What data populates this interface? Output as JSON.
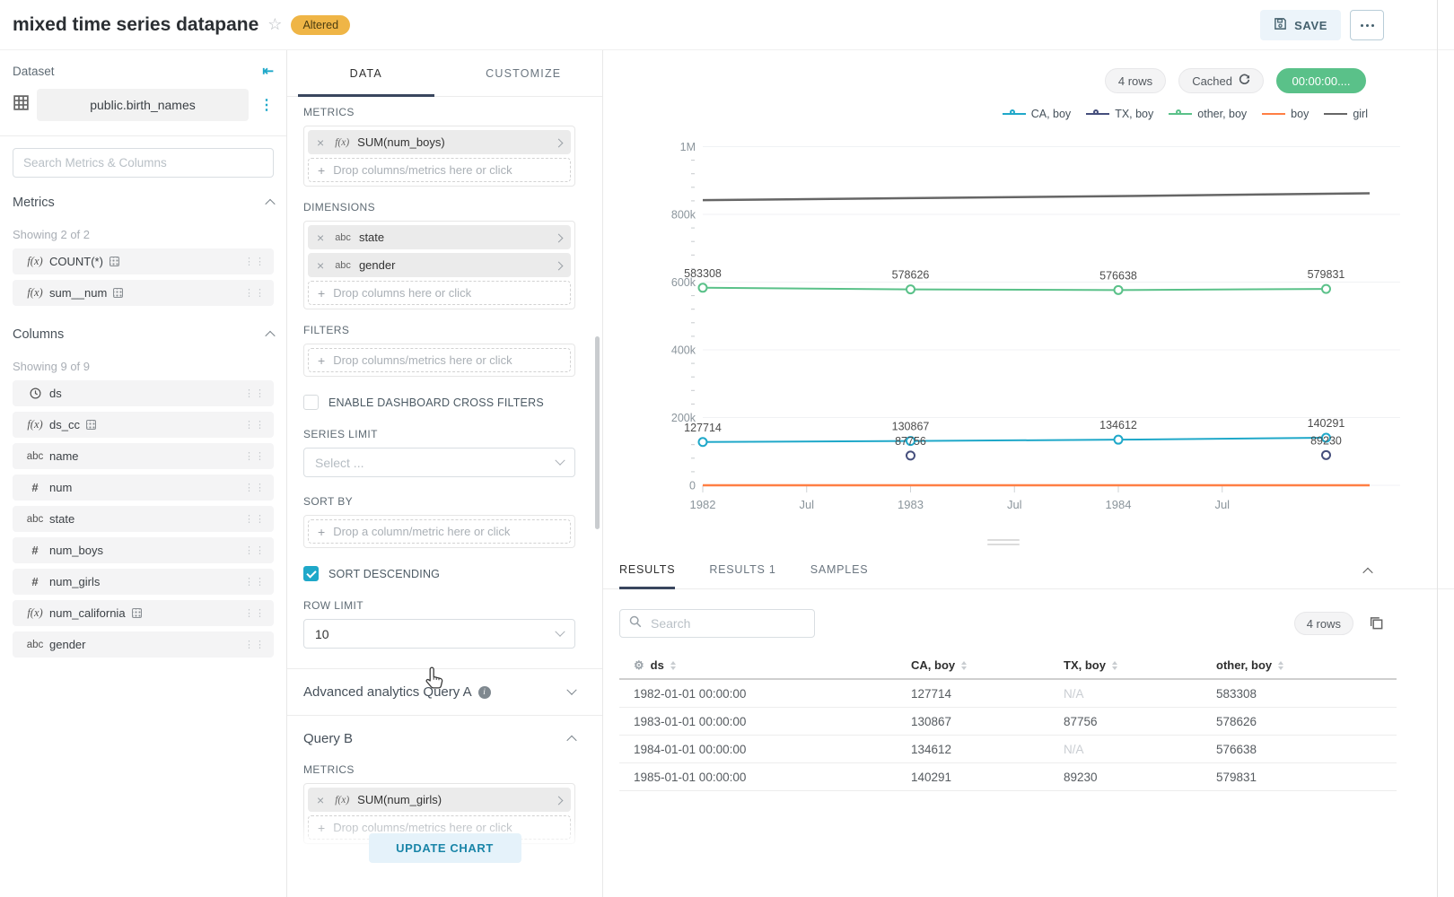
{
  "header": {
    "title": "mixed time series datapane",
    "altered_badge": "Altered",
    "save_label": "SAVE"
  },
  "dataset_panel": {
    "section_label": "Dataset",
    "dataset_name": "public.birth_names",
    "search_placeholder": "Search Metrics & Columns",
    "metrics_header": "Metrics",
    "metrics_showing": "Showing 2 of 2",
    "metrics": [
      {
        "name": "COUNT(*)",
        "icon": "fx",
        "certified": true
      },
      {
        "name": "sum__num",
        "icon": "fx",
        "certified": true
      }
    ],
    "columns_header": "Columns",
    "columns_showing": "Showing 9 of 9",
    "columns": [
      {
        "name": "ds",
        "icon": "clock"
      },
      {
        "name": "ds_cc",
        "icon": "fx",
        "certified": true
      },
      {
        "name": "name",
        "icon": "abc"
      },
      {
        "name": "num",
        "icon": "num"
      },
      {
        "name": "state",
        "icon": "abc"
      },
      {
        "name": "num_boys",
        "icon": "num"
      },
      {
        "name": "num_girls",
        "icon": "num"
      },
      {
        "name": "num_california",
        "icon": "fx",
        "certified": true
      },
      {
        "name": "gender",
        "icon": "abc"
      }
    ]
  },
  "control_panel": {
    "tabs": [
      "DATA",
      "CUSTOMIZE"
    ],
    "active_tab": "DATA",
    "query_a": {
      "metrics_label": "METRICS",
      "metric_pill": "SUM(num_boys)",
      "drop_metrics_placeholder": "Drop columns/metrics here or click",
      "dimensions_label": "DIMENSIONS",
      "dimension_pills": [
        "state",
        "gender"
      ],
      "drop_columns_placeholder": "Drop columns here or click",
      "filters_label": "FILTERS",
      "cross_filters_label": "ENABLE DASHBOARD CROSS FILTERS",
      "cross_filters_checked": false,
      "series_limit_label": "SERIES LIMIT",
      "series_limit_placeholder": "Select ...",
      "sort_by_label": "SORT BY",
      "drop_sort_placeholder": "Drop a column/metric here or click",
      "sort_descending_label": "SORT DESCENDING",
      "sort_descending_checked": true,
      "row_limit_label": "ROW LIMIT",
      "row_limit_value": "10"
    },
    "advanced_analytics_label": "Advanced analytics Query A",
    "query_b_label": "Query B",
    "query_b": {
      "metrics_label": "METRICS",
      "metric_pill": "SUM(num_girls)",
      "drop_metrics_placeholder": "Drop columns/metrics here or click"
    },
    "update_chart_label": "UPDATE CHART"
  },
  "chart": {
    "badges": {
      "rows": "4 rows",
      "cached": "Cached",
      "timer": "00:00:00...."
    },
    "chart_data": {
      "type": "line",
      "x": [
        "1982-01-01",
        "1983-01-01",
        "1984-01-01",
        "1985-01-01"
      ],
      "x_tick_labels": [
        "1982",
        "Jul",
        "1983",
        "Jul",
        "1984",
        "Jul"
      ],
      "y_tick_labels": [
        "1M",
        "800k",
        "600k",
        "400k",
        "200k",
        "0"
      ],
      "ylim": [
        0,
        1000000
      ],
      "grid": true,
      "legend_position": "top-right",
      "series": [
        {
          "name": "CA, boy",
          "color": "#1FA8C9",
          "marker": true,
          "values": [
            127714,
            130867,
            134612,
            140291
          ]
        },
        {
          "name": "TX, boy",
          "color": "#454E7C",
          "marker": true,
          "line": false,
          "values": [
            null,
            87756,
            null,
            89230
          ]
        },
        {
          "name": "other, boy",
          "color": "#5AC189",
          "marker": true,
          "values": [
            583308,
            578626,
            576638,
            579831
          ]
        },
        {
          "name": "boy",
          "color": "#FF7F44",
          "marker": false,
          "values": [
            0,
            0,
            0,
            0
          ]
        },
        {
          "name": "girl",
          "color": "#666666",
          "marker": false,
          "values": [
            842000,
            848000,
            854000,
            861000
          ]
        }
      ]
    }
  },
  "results": {
    "tabs": [
      "RESULTS",
      "RESULTS 1",
      "SAMPLES"
    ],
    "active_tab": "RESULTS",
    "search_placeholder": "Search",
    "rows_badge": "4 rows",
    "table": {
      "columns": [
        "ds",
        "CA, boy",
        "TX, boy",
        "other, boy"
      ],
      "rows": [
        [
          "1982-01-01 00:00:00",
          "127714",
          "N/A",
          "583308"
        ],
        [
          "1983-01-01 00:00:00",
          "130867",
          "87756",
          "578626"
        ],
        [
          "1984-01-01 00:00:00",
          "134612",
          "N/A",
          "576638"
        ],
        [
          "1985-01-01 00:00:00",
          "140291",
          "89230",
          "579831"
        ]
      ]
    }
  },
  "colors": {
    "accent": "#1FA8C9",
    "altered_badge_bg": "#EFB546",
    "timer_badge_bg": "#5AC189",
    "active_tab_underline": "#39465E"
  }
}
